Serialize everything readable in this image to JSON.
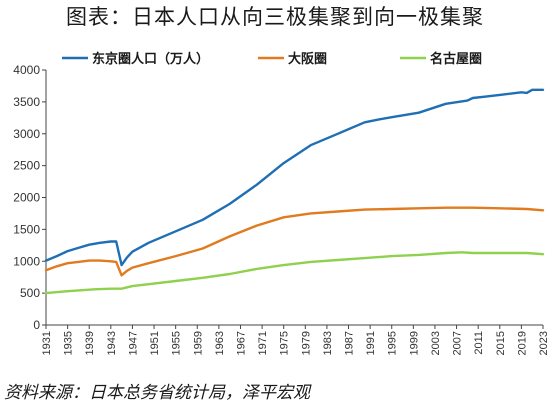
{
  "title": "图表：日本人口从向三极集聚到向一极集聚",
  "source": "资料来源：日本总务省统计局，泽平宏观",
  "chart_data": {
    "type": "line",
    "title": "图表：日本人口从向三极集聚到向一极集聚",
    "xlabel": "",
    "ylabel": "",
    "ylim": [
      0,
      4000
    ],
    "yticks": [
      0,
      500,
      1000,
      1500,
      2000,
      2500,
      3000,
      3500,
      4000
    ],
    "xlim": [
      1931,
      2023
    ],
    "xticks": [
      1931,
      1935,
      1939,
      1943,
      1947,
      1951,
      1955,
      1959,
      1963,
      1967,
      1971,
      1975,
      1979,
      1983,
      1987,
      1991,
      1995,
      1999,
      2003,
      2007,
      2011,
      2015,
      2019,
      2023
    ],
    "grid": false,
    "legend": "top",
    "series": [
      {
        "name": "东京圈人口（万人）",
        "color": "#1f6fb4",
        "x": [
          1931,
          1933,
          1935,
          1937,
          1939,
          1941,
          1943,
          1944,
          1945,
          1946,
          1947,
          1950,
          1955,
          1960,
          1965,
          1970,
          1975,
          1980,
          1985,
          1990,
          1993,
          1995,
          2000,
          2005,
          2009,
          2010,
          2012,
          2015,
          2019,
          2020,
          2021,
          2023
        ],
        "values": [
          1010,
          1080,
          1160,
          1210,
          1260,
          1290,
          1310,
          1310,
          940,
          1060,
          1150,
          1290,
          1470,
          1650,
          1900,
          2200,
          2540,
          2820,
          3000,
          3180,
          3230,
          3260,
          3330,
          3470,
          3520,
          3560,
          3580,
          3610,
          3650,
          3640,
          3690,
          3690
        ]
      },
      {
        "name": "大阪圈",
        "color": "#e07b1f",
        "x": [
          1931,
          1933,
          1935,
          1937,
          1939,
          1941,
          1943,
          1944,
          1945,
          1946,
          1947,
          1950,
          1955,
          1960,
          1965,
          1970,
          1975,
          1980,
          1985,
          1990,
          1995,
          2000,
          2005,
          2010,
          2015,
          2020,
          2023
        ],
        "values": [
          860,
          920,
          970,
          990,
          1010,
          1010,
          1000,
          990,
          780,
          850,
          900,
          970,
          1080,
          1200,
          1390,
          1560,
          1690,
          1750,
          1780,
          1810,
          1820,
          1830,
          1840,
          1840,
          1830,
          1820,
          1800
        ]
      },
      {
        "name": "名古屋圈",
        "color": "#8fd14f",
        "x": [
          1931,
          1935,
          1940,
          1943,
          1945,
          1947,
          1950,
          1955,
          1960,
          1965,
          1970,
          1975,
          1980,
          1985,
          1990,
          1995,
          2000,
          2005,
          2008,
          2010,
          2015,
          2020,
          2023
        ],
        "values": [
          500,
          530,
          560,
          570,
          570,
          610,
          640,
          690,
          740,
          800,
          880,
          940,
          990,
          1020,
          1050,
          1080,
          1100,
          1130,
          1140,
          1130,
          1130,
          1130,
          1110
        ]
      }
    ]
  }
}
